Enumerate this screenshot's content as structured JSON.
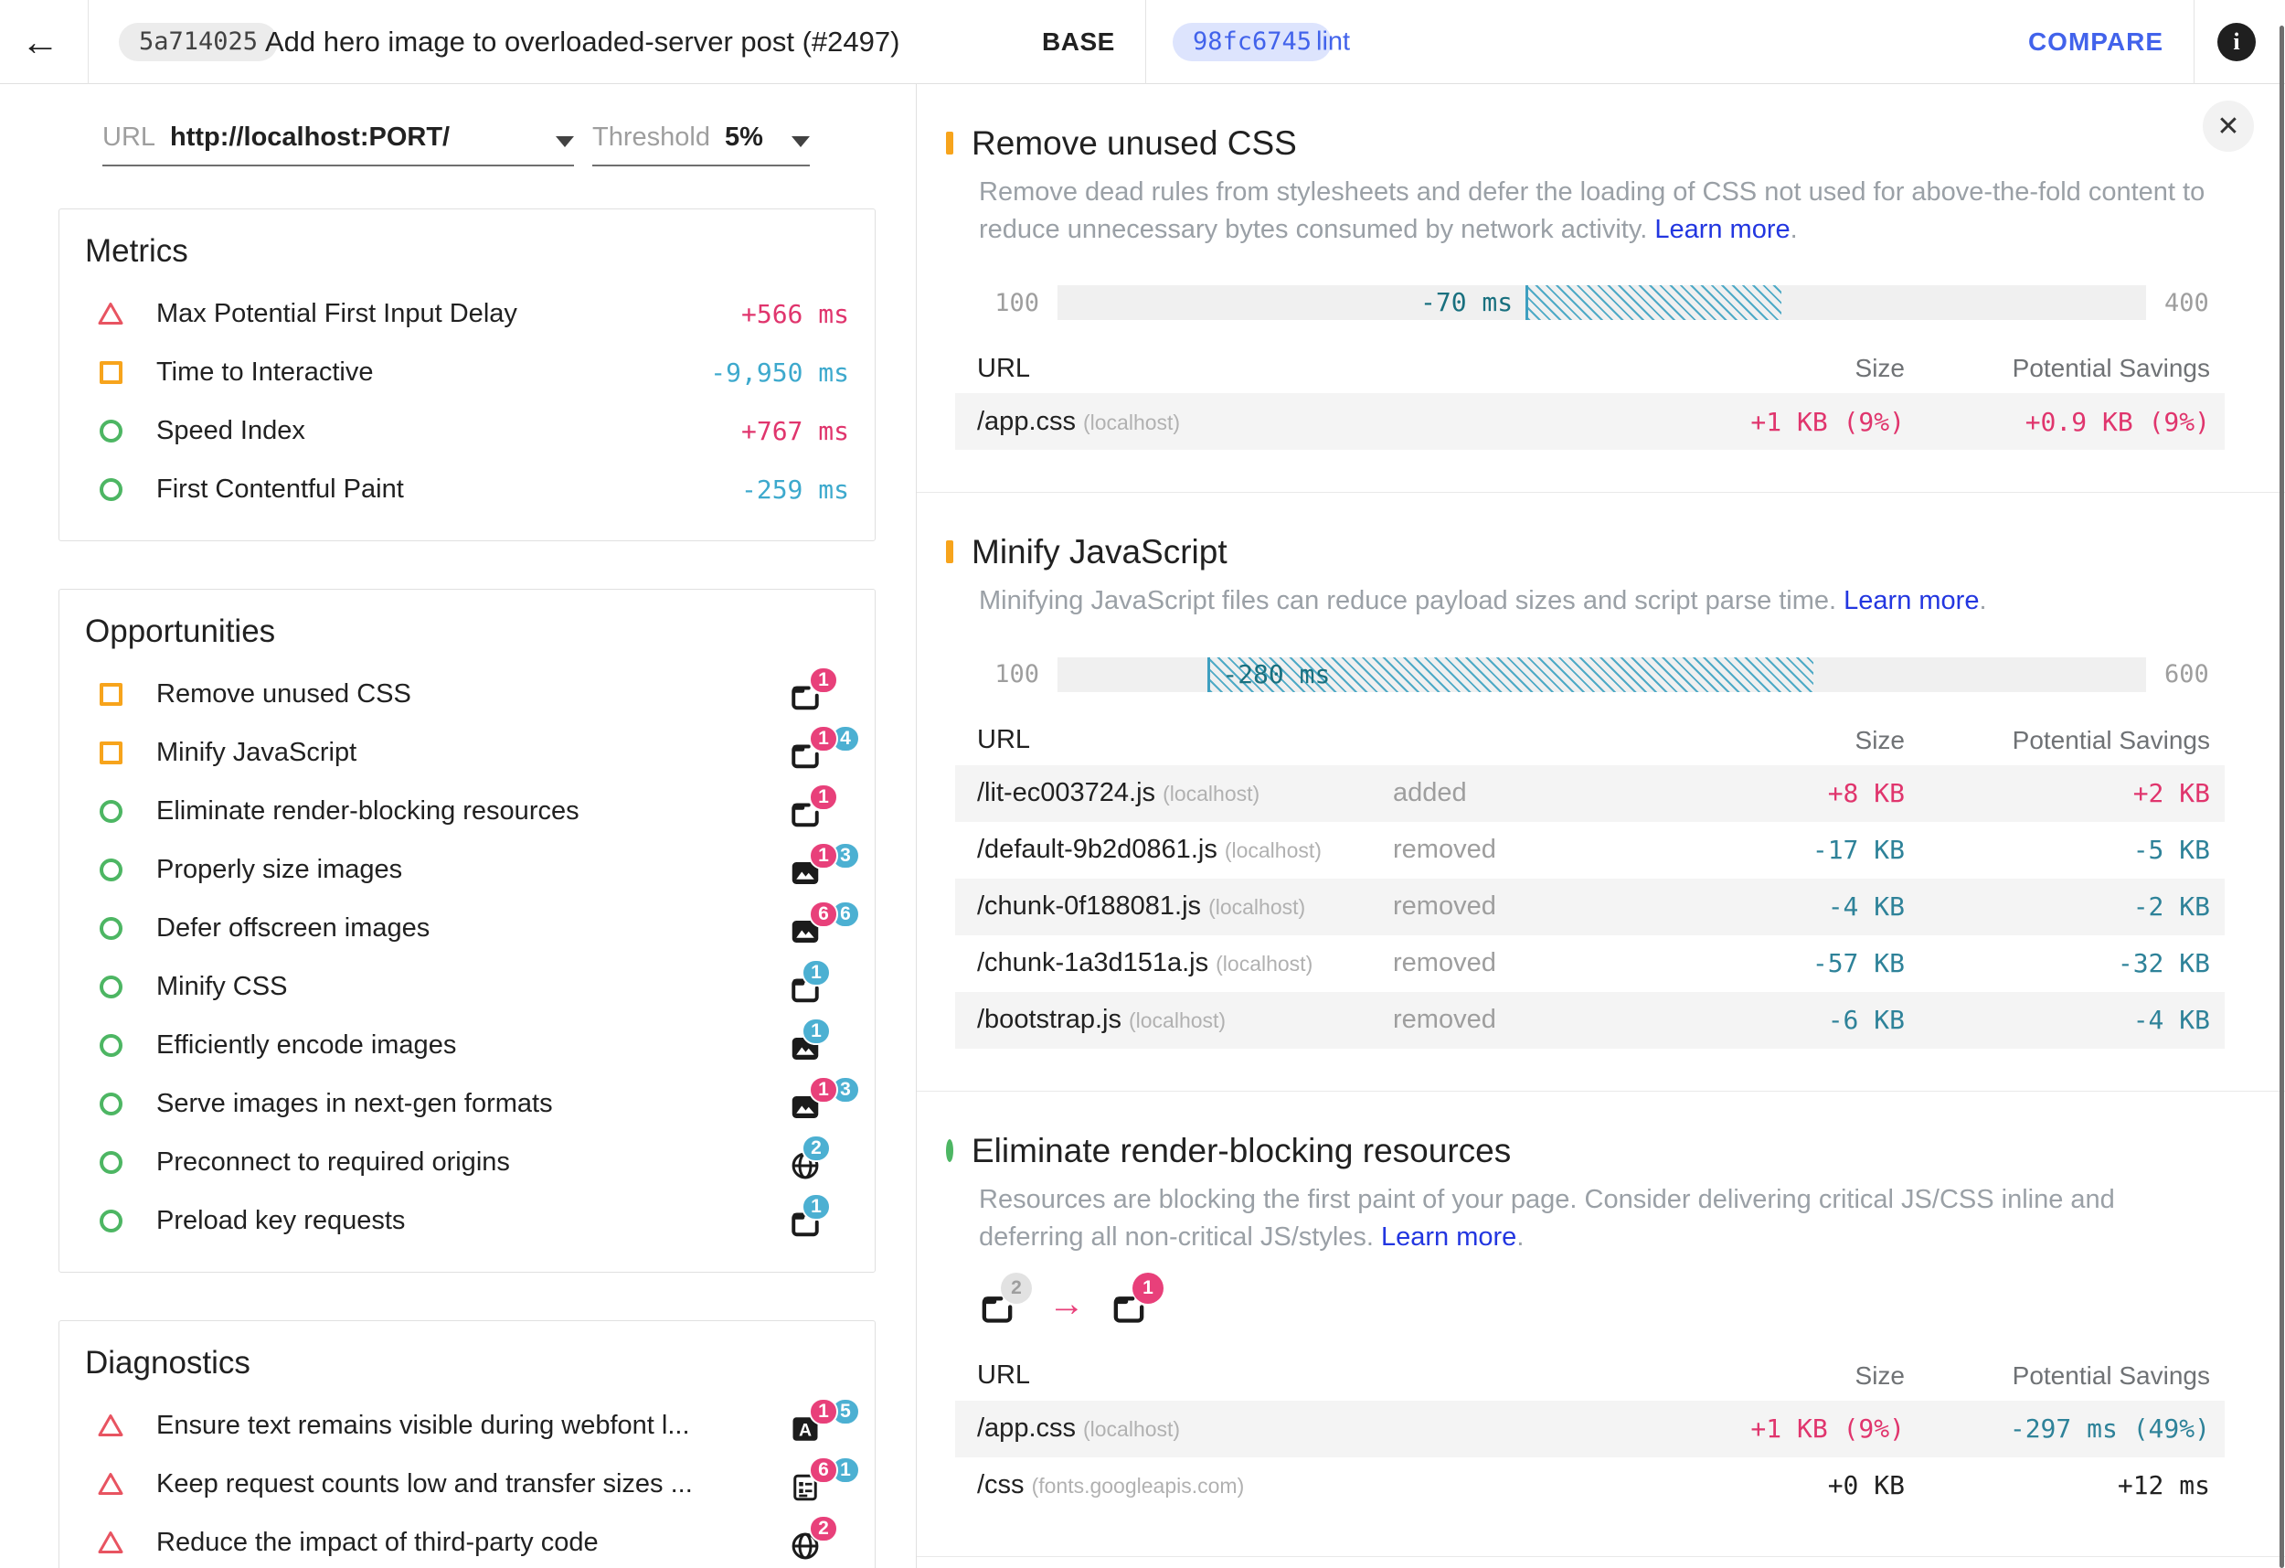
{
  "header": {
    "back_glyph": "←",
    "build": {
      "hash": "5a714025",
      "title": "Add hero image to overloaded-server post (#2497)"
    },
    "base": {
      "label": "BASE",
      "hash": "98fc6745",
      "branch": "lint"
    },
    "compare_label": "COMPARE",
    "info_glyph": "i",
    "close_glyph": "✕"
  },
  "controls": {
    "url": {
      "label": "URL",
      "value": "http://localhost:PORT/"
    },
    "threshold": {
      "label": "Threshold",
      "value": "5%"
    }
  },
  "colors": {
    "regression_pink": "#e8407a",
    "improvement_blue": "#4cb0d2",
    "metric_regression_text": "#e0356d",
    "metric_improvement_text": "#3da9cd",
    "table_improvement_text": "#2e8299",
    "gauge_teal": "#3e9fc0",
    "gauge_label_teal": "#19707f",
    "link_blue": "#2236e0",
    "brand_blue": "#4263eb",
    "status_orange": "#f7a41c",
    "status_green": "#4db663",
    "status_red": "#e85461"
  },
  "sidebar": {
    "metrics": {
      "title": "Metrics",
      "items": [
        {
          "label": "Max Potential First Input Delay",
          "value": "+566 ms",
          "dir": "up",
          "status": "fail"
        },
        {
          "label": "Time to Interactive",
          "value": "-9,950 ms",
          "dir": "down",
          "status": "warn"
        },
        {
          "label": "Speed Index",
          "value": "+767 ms",
          "dir": "up",
          "status": "pass"
        },
        {
          "label": "First Contentful Paint",
          "value": "-259 ms",
          "dir": "down",
          "status": "pass"
        }
      ]
    },
    "opportunities": {
      "title": "Opportunities",
      "items": [
        {
          "label": "Remove unused CSS",
          "status": "warn",
          "icon": "document",
          "badges": [
            {
              "count": "1",
              "type": "pink"
            }
          ]
        },
        {
          "label": "Minify JavaScript",
          "status": "warn",
          "icon": "document",
          "badges": [
            {
              "count": "1",
              "type": "pink"
            },
            {
              "count": "4",
              "type": "blue"
            }
          ]
        },
        {
          "label": "Eliminate render-blocking resources",
          "status": "pass",
          "icon": "document",
          "badges": [
            {
              "count": "1",
              "type": "pink"
            }
          ]
        },
        {
          "label": "Properly size images",
          "status": "pass",
          "icon": "image",
          "badges": [
            {
              "count": "1",
              "type": "pink"
            },
            {
              "count": "3",
              "type": "blue"
            }
          ]
        },
        {
          "label": "Defer offscreen images",
          "status": "pass",
          "icon": "image",
          "badges": [
            {
              "count": "6",
              "type": "pink"
            },
            {
              "count": "6",
              "type": "blue"
            }
          ]
        },
        {
          "label": "Minify CSS",
          "status": "pass",
          "icon": "document",
          "badges": [
            {
              "count": "1",
              "type": "blue"
            }
          ]
        },
        {
          "label": "Efficiently encode images",
          "status": "pass",
          "icon": "image",
          "badges": [
            {
              "count": "1",
              "type": "blue"
            }
          ]
        },
        {
          "label": "Serve images in next-gen formats",
          "status": "pass",
          "icon": "image",
          "badges": [
            {
              "count": "1",
              "type": "pink"
            },
            {
              "count": "3",
              "type": "blue"
            }
          ]
        },
        {
          "label": "Preconnect to required origins",
          "status": "pass",
          "icon": "globe",
          "badges": [
            {
              "count": "2",
              "type": "blue"
            }
          ]
        },
        {
          "label": "Preload key requests",
          "status": "pass",
          "icon": "document",
          "badges": [
            {
              "count": "1",
              "type": "blue"
            }
          ]
        }
      ]
    },
    "diagnostics": {
      "title": "Diagnostics",
      "items": [
        {
          "label": "Ensure text remains visible during webfont l...",
          "status": "fail",
          "icon": "font",
          "badges": [
            {
              "count": "1",
              "type": "pink"
            },
            {
              "count": "5",
              "type": "blue"
            }
          ]
        },
        {
          "label": "Keep request counts low and transfer sizes ...",
          "status": "fail",
          "icon": "list",
          "badges": [
            {
              "count": "6",
              "type": "pink"
            },
            {
              "count": "1",
              "type": "blue"
            }
          ]
        },
        {
          "label": "Reduce the impact of third-party code",
          "status": "fail",
          "icon": "globe",
          "badges": [
            {
              "count": "2",
              "type": "pink"
            }
          ]
        }
      ]
    }
  },
  "audits": [
    {
      "title": "Remove unused CSS",
      "status": "warn",
      "description": "Remove dead rules from stylesheets and defer the loading of CSS not used for above-the-fold content to reduce unnecessary bytes consumed by network activity.",
      "learn_more": "Learn more",
      "suffix": ".",
      "gauge": {
        "min": "100",
        "max": "400",
        "delta": "-70 ms",
        "start_pct": 43,
        "end_pct": 66.5,
        "label_position": "outside"
      },
      "table": {
        "headers": [
          "URL",
          "Size",
          "Potential Savings"
        ],
        "has_type": false,
        "rows": [
          {
            "url": "/app.css",
            "host": "(localhost)",
            "size": "+1 KB (9%)",
            "size_dir": "up",
            "savings": "+0.9 KB (9%)",
            "savings_dir": "up"
          }
        ]
      }
    },
    {
      "title": "Minify JavaScript",
      "status": "warn",
      "description": "Minifying JavaScript files can reduce payload sizes and script parse time.",
      "learn_more": "Learn more",
      "suffix": ".",
      "gauge": {
        "min": "100",
        "max": "600",
        "delta": "-280 ms",
        "start_pct": 13.8,
        "end_pct": 69.4,
        "label_position": "inside"
      },
      "table": {
        "headers": [
          "URL",
          "Size",
          "Potential Savings"
        ],
        "has_type": true,
        "rows": [
          {
            "url": "/lit-ec003724.js",
            "host": "(localhost)",
            "type": "added",
            "size": "+8 KB",
            "size_dir": "up",
            "savings": "+2 KB",
            "savings_dir": "up"
          },
          {
            "url": "/default-9b2d0861.js",
            "host": "(localhost)",
            "type": "removed",
            "size": "-17 KB",
            "size_dir": "tdown",
            "savings": "-5 KB",
            "savings_dir": "tdown"
          },
          {
            "url": "/chunk-0f188081.js",
            "host": "(localhost)",
            "type": "removed",
            "size": "-4 KB",
            "size_dir": "tdown",
            "savings": "-2 KB",
            "savings_dir": "tdown"
          },
          {
            "url": "/chunk-1a3d151a.js",
            "host": "(localhost)",
            "type": "removed",
            "size": "-57 KB",
            "size_dir": "tdown",
            "savings": "-32 KB",
            "savings_dir": "tdown"
          },
          {
            "url": "/bootstrap.js",
            "host": "(localhost)",
            "type": "removed",
            "size": "-6 KB",
            "size_dir": "tdown",
            "savings": "-4 KB",
            "savings_dir": "tdown"
          }
        ]
      }
    },
    {
      "title": "Eliminate render-blocking resources",
      "status": "pass",
      "description": "Resources are blocking the first paint of your page. Consider delivering critical JS/CSS inline and deferring all non-critical JS/styles.",
      "learn_more": "Learn more",
      "suffix": ".",
      "flow": {
        "before_count": "2",
        "before_type": "gray",
        "arrow": "→",
        "after_count": "1",
        "after_type": "pink",
        "icon": "document"
      },
      "table": {
        "headers": [
          "URL",
          "Size",
          "Potential Savings"
        ],
        "has_type": false,
        "rows": [
          {
            "url": "/app.css",
            "host": "(localhost)",
            "size": "+1 KB (9%)",
            "size_dir": "up",
            "savings": "-297 ms (49%)",
            "savings_dir": "tdown"
          },
          {
            "url": "/css",
            "host": "(fonts.googleapis.com)",
            "size": "+0 KB",
            "size_dir": "flat",
            "savings": "+12 ms",
            "savings_dir": "flat"
          }
        ]
      }
    }
  ]
}
